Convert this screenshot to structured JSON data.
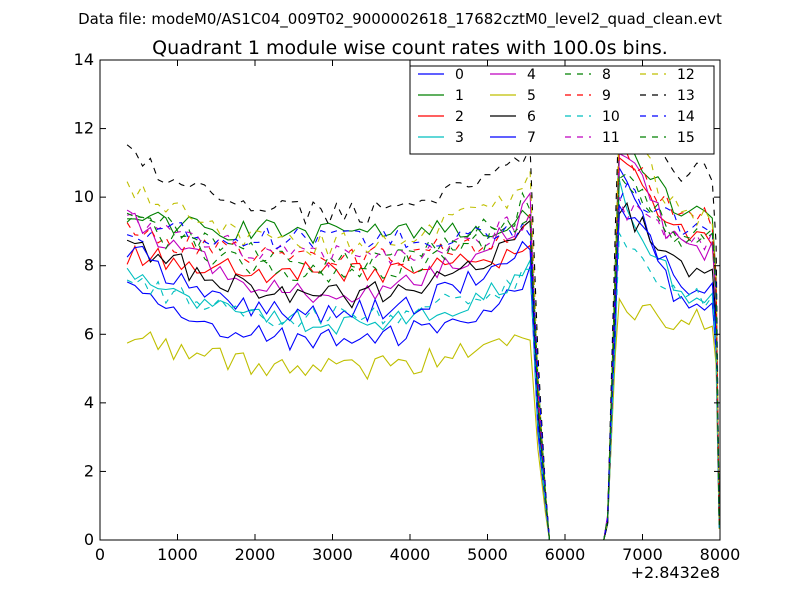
{
  "header": {
    "data_file": "Data file: modeM0/AS1C04_009T02_9000002618_17682cztM0_level2_quad_clean.evt"
  },
  "chart_data": {
    "type": "line",
    "title": "Quadrant 1 module wise count rates with 100.0s bins.",
    "xlabel": "",
    "ylabel": "",
    "x_offset_label": "+2.8432e8",
    "xlim": [
      0,
      8000
    ],
    "ylim": [
      0,
      14
    ],
    "xticks": [
      0,
      1000,
      2000,
      3000,
      4000,
      5000,
      6000,
      7000,
      8000
    ],
    "yticks": [
      0,
      2,
      4,
      6,
      8,
      10,
      12,
      14
    ],
    "grid": false,
    "legend_location": "top-right",
    "legend_columns": 4,
    "segments": [
      {
        "x_start": 350,
        "x_end": 5550,
        "step": 100
      },
      {
        "x_start": 5650,
        "x_end": 5850,
        "step": 100
      },
      {
        "x_start": 6450,
        "x_end": 6650,
        "step": 100
      },
      {
        "x_start": 6700,
        "x_end": 7900,
        "step": 100
      },
      {
        "x_start": 7950,
        "x_end": 7990,
        "step": 40
      }
    ],
    "series": [
      {
        "name": "0",
        "color": "#0000ff",
        "dash": "solid",
        "base": 7.4,
        "active": 5.8,
        "short": 6.8,
        "peak": 11.0
      },
      {
        "name": "1",
        "color": "#008000",
        "dash": "solid",
        "base": 9.3,
        "active": 9.0,
        "short": 9.6,
        "peak": 11.6
      },
      {
        "name": "2",
        "color": "#ff0000",
        "dash": "solid",
        "base": 8.3,
        "active": 7.8,
        "short": 8.9,
        "peak": 11.2
      },
      {
        "name": "3",
        "color": "#00bfbf",
        "dash": "solid",
        "base": 7.8,
        "active": 6.3,
        "short": 7.2,
        "peak": 10.3
      },
      {
        "name": "4",
        "color": "#bf00bf",
        "dash": "solid",
        "base": 9.5,
        "active": 7.2,
        "short": 8.5,
        "peak": 11.5
      },
      {
        "name": "5",
        "color": "#bfbf00",
        "dash": "solid",
        "base": 6.0,
        "active": 5.0,
        "short": 6.4,
        "peak": 6.7
      },
      {
        "name": "6",
        "color": "#000000",
        "dash": "solid",
        "base": 8.8,
        "active": 7.1,
        "short": 8.0,
        "peak": 9.8
      },
      {
        "name": "7",
        "color": "#0000ff",
        "dash": "solid",
        "base": 8.5,
        "active": 6.6,
        "short": 7.5,
        "peak": 10.0
      },
      {
        "name": "8",
        "color": "#008000",
        "dash": "dashed",
        "base": 9.7,
        "active": 8.1,
        "short": 8.9,
        "peak": 10.8
      },
      {
        "name": "9",
        "color": "#ff0000",
        "dash": "dashed",
        "base": 9.1,
        "active": 8.2,
        "short": 9.4,
        "peak": 11.4
      },
      {
        "name": "10",
        "color": "#00bfbf",
        "dash": "dashed",
        "base": 7.5,
        "active": 6.5,
        "short": 7.0,
        "peak": 9.0
      },
      {
        "name": "11",
        "color": "#bf00bf",
        "dash": "dashed",
        "base": 9.3,
        "active": 8.3,
        "short": 8.8,
        "peak": 9.8
      },
      {
        "name": "12",
        "color": "#bfbf00",
        "dash": "dashed",
        "base": 10.3,
        "active": 8.6,
        "short": 9.5,
        "peak": 12.3
      },
      {
        "name": "13",
        "color": "#000000",
        "dash": "dashed",
        "base": 11.2,
        "active": 9.5,
        "short": 10.8,
        "peak": 12.6
      },
      {
        "name": "14",
        "color": "#0000ff",
        "dash": "dashed",
        "base": 9.0,
        "active": 8.8,
        "short": 9.2,
        "peak": 10.2
      },
      {
        "name": "15",
        "color": "#008000",
        "dash": "dashed",
        "base": 9.4,
        "active": 7.8,
        "short": 8.8,
        "peak": 10.6
      }
    ]
  }
}
